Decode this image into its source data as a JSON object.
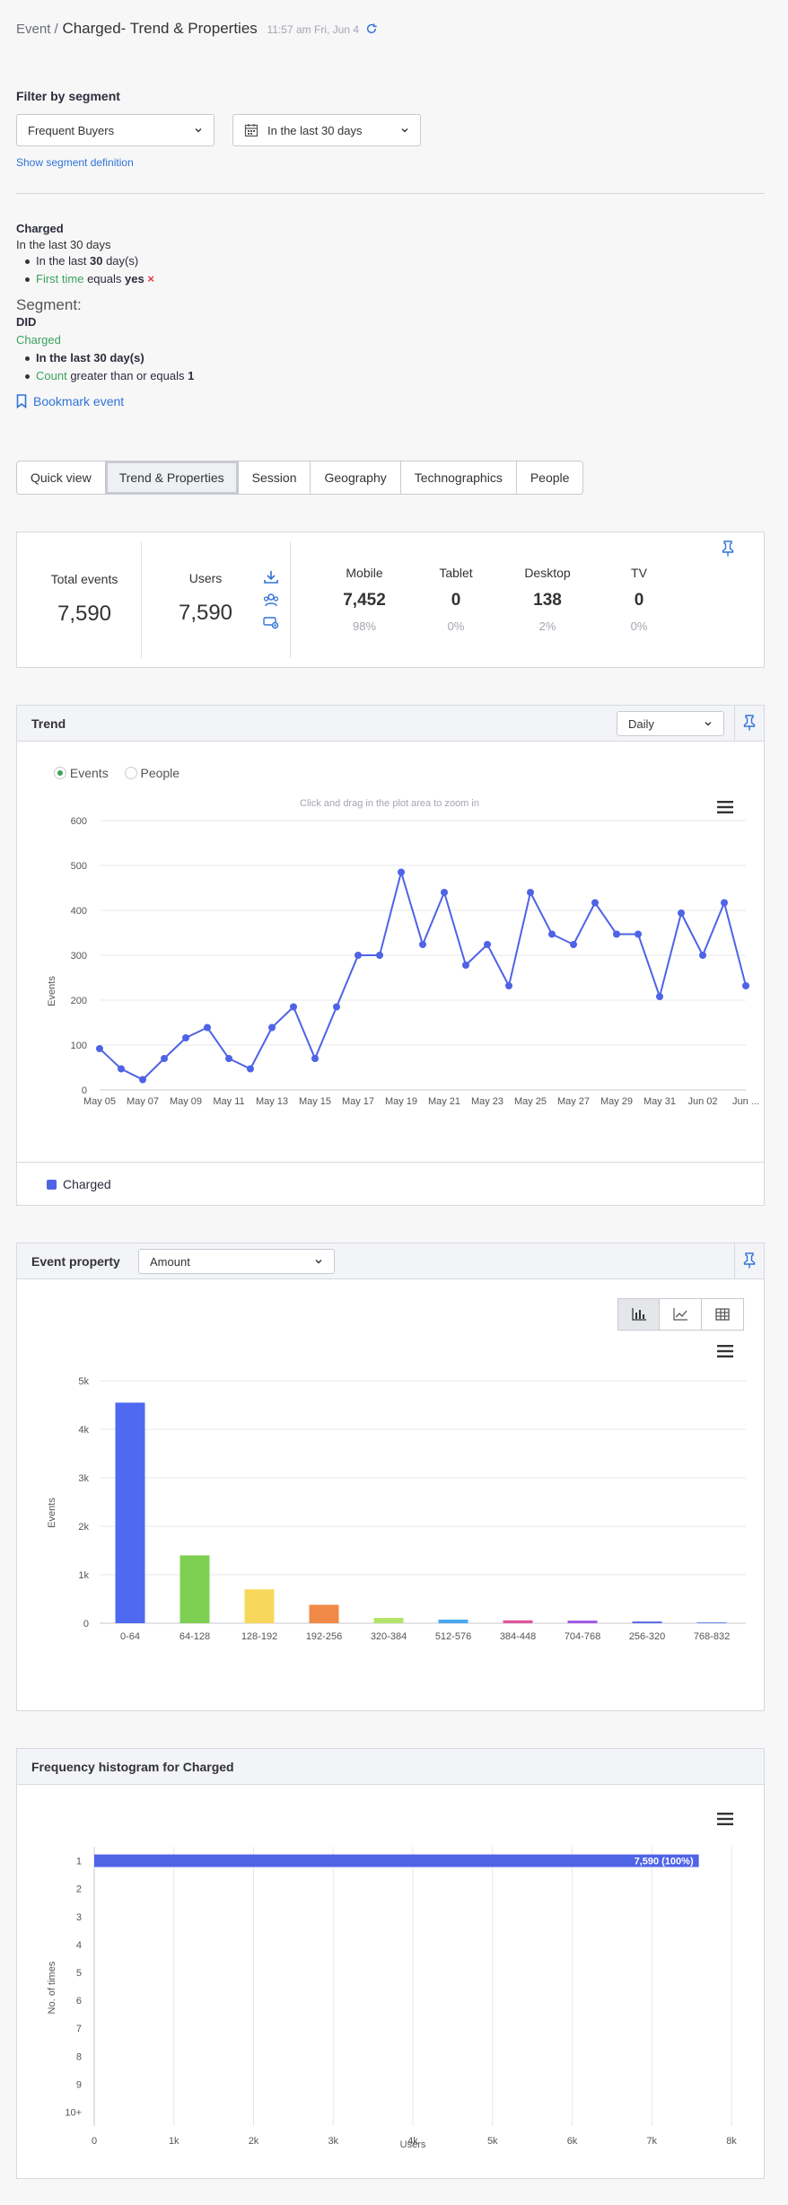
{
  "header": {
    "crumb": "Event /",
    "title": "Charged- Trend & Properties",
    "time": "11:57 am Fri, Jun 4"
  },
  "filter": {
    "heading": "Filter by segment",
    "segment_value": "Frequent Buyers",
    "date_value": "In the last 30 days",
    "show_definition": "Show segment definition"
  },
  "definition": {
    "event": "Charged",
    "range": "In the last 30 days",
    "item1_pre": "In the last ",
    "item1_num": "30",
    "item1_post": " day(s)",
    "item2_prop": "First time",
    "item2_op": " equals ",
    "item2_val": "yes",
    "item2_remove": "×",
    "segment_label": "Segment:",
    "segment_did": "DID",
    "segment_event": "Charged",
    "seg_item1": "In the last 30 day(s)",
    "seg_item2_prop": "Count",
    "seg_item2_op": " greater than or equals ",
    "seg_item2_val": "1",
    "bookmark": "Bookmark event"
  },
  "tabs": [
    "Quick view",
    "Trend & Properties",
    "Session",
    "Geography",
    "Technographics",
    "People"
  ],
  "summary": {
    "total_label": "Total events",
    "total_value": "7,590",
    "users_label": "Users",
    "users_value": "7,590",
    "devices": [
      {
        "label": "Mobile",
        "value": "7,452",
        "pct": "98%"
      },
      {
        "label": "Tablet",
        "value": "0",
        "pct": "0%"
      },
      {
        "label": "Desktop",
        "value": "138",
        "pct": "2%"
      },
      {
        "label": "TV",
        "value": "0",
        "pct": "0%"
      }
    ]
  },
  "trend": {
    "title": "Trend",
    "granularity": "Daily",
    "radio_events": "Events",
    "radio_people": "People",
    "zoom_hint": "Click and drag in the plot area to zoom in",
    "legend": "Charged"
  },
  "property": {
    "title": "Event property",
    "selected": "Amount"
  },
  "histogram": {
    "title": "Frequency histogram for Charged"
  },
  "colors": {
    "accent": "#4f63e6",
    "green": "#3aa35c"
  },
  "chart_data": [
    {
      "type": "line",
      "ylabel": "Events",
      "ylim": [
        0,
        600
      ],
      "yticks": [
        0,
        100,
        200,
        300,
        400,
        500,
        600
      ],
      "x": [
        "May 05",
        "May 06",
        "May 07",
        "May 08",
        "May 09",
        "May 10",
        "May 11",
        "May 12",
        "May 13",
        "May 14",
        "May 15",
        "May 16",
        "May 17",
        "May 18",
        "May 19",
        "May 20",
        "May 21",
        "May 22",
        "May 23",
        "May 24",
        "May 25",
        "May 26",
        "May 27",
        "May 28",
        "May 29",
        "May 30",
        "May 31",
        "Jun 01",
        "Jun 02",
        "Jun 03",
        "Jun 04"
      ],
      "xtick_labels": [
        "May 05",
        "May 07",
        "May 09",
        "May 11",
        "May 13",
        "May 15",
        "May 17",
        "May 19",
        "May 21",
        "May 23",
        "May 25",
        "May 27",
        "May 29",
        "May 31",
        "Jun 02",
        "Jun ..."
      ],
      "series": [
        {
          "name": "Charged",
          "values": [
            92,
            47,
            23,
            70,
            116,
            139,
            70,
            47,
            139,
            185,
            70,
            185,
            300,
            300,
            485,
            324,
            440,
            278,
            324,
            232,
            440,
            347,
            324,
            417,
            347,
            347,
            208,
            394,
            300,
            417,
            232
          ]
        }
      ]
    },
    {
      "type": "bar",
      "ylabel": "Events",
      "ylim": [
        0,
        5000
      ],
      "yticks": [
        "0",
        "1k",
        "2k",
        "3k",
        "4k",
        "5k"
      ],
      "categories": [
        "0-64",
        "64-128",
        "128-192",
        "192-256",
        "320-384",
        "512-576",
        "384-448",
        "704-768",
        "256-320",
        "768-832"
      ],
      "values": [
        4550,
        1400,
        700,
        380,
        110,
        75,
        60,
        55,
        35,
        20
      ],
      "bar_colors": [
        "#4f6af0",
        "#7ed052",
        "#f8d85c",
        "#f08a46",
        "#b4e36a",
        "#4aa8ef",
        "#e0569c",
        "#a35be4",
        "#5566e8",
        "#6b8df0"
      ]
    },
    {
      "type": "bar",
      "orientation": "horizontal",
      "xlabel": "Users",
      "ylabel": "No. of times",
      "xlim": [
        0,
        8000
      ],
      "xticks": [
        "0",
        "1k",
        "2k",
        "3k",
        "4k",
        "5k",
        "6k",
        "7k",
        "8k"
      ],
      "categories": [
        "1",
        "2",
        "3",
        "4",
        "5",
        "6",
        "7",
        "8",
        "9",
        "10+"
      ],
      "values": [
        7590,
        0,
        0,
        0,
        0,
        0,
        0,
        0,
        0,
        0
      ],
      "data_label": "7,590 (100%)"
    }
  ]
}
